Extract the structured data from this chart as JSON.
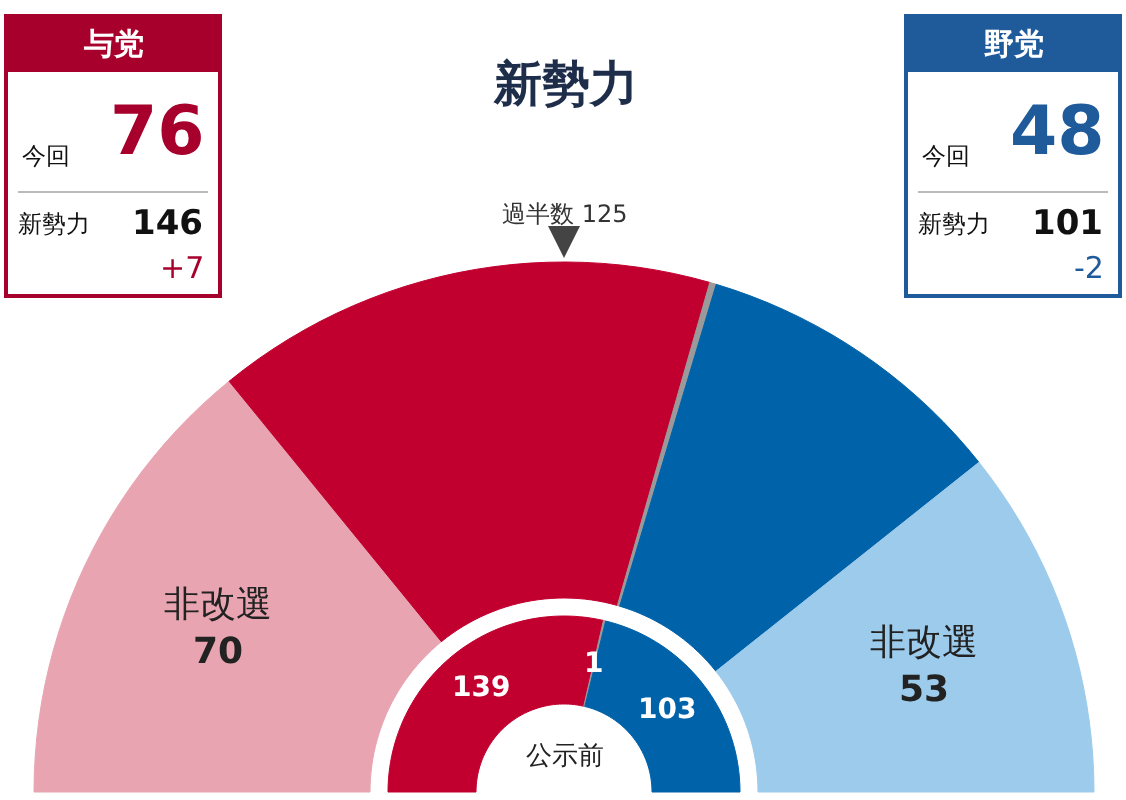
{
  "chart_data": [
    {
      "type": "donut",
      "title": "新勢力",
      "categories": [
        "非改選",
        null,
        null,
        null,
        "非改選"
      ],
      "series": [
        {
          "values": [
            70,
            76,
            1,
            48,
            53
          ],
          "colors": [
            "#e8a5b1",
            "#c2002f",
            "#9a9a9a",
            "#0062a9",
            "#9ccbec"
          ],
          "value_labels": [
            "70",
            null,
            null,
            null,
            "53"
          ]
        },
        {
          "values": [
            null,
            139,
            1,
            103,
            null
          ],
          "colors": [
            null,
            "#c2002f",
            "#9a9a9a",
            "#0062a9",
            null
          ],
          "value_labels": [
            null,
            "139",
            "1",
            "103",
            null
          ]
        }
      ],
      "annotations": [
        "公示前",
        "過半数 125"
      ]
    },
    {
      "type": "other",
      "title": "与党",
      "color": "#a8002c",
      "annotations": [
        "今回",
        "76",
        "新勢力",
        "146",
        "+7"
      ]
    },
    {
      "type": "other",
      "title": "野党",
      "color": "#1f5a9a",
      "annotations": [
        "今回",
        "48",
        "新勢力",
        "101",
        "-2"
      ]
    }
  ]
}
